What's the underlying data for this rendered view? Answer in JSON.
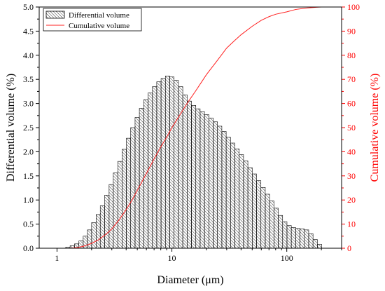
{
  "chart_data": {
    "type": "bar",
    "xlabel": "Diameter (μm)",
    "ylabel": "Differential volume (%)",
    "y2label": "Cumulative volume (%)",
    "xscale": "log",
    "xlim": [
      0.7,
      300
    ],
    "ylim": [
      0,
      5.0
    ],
    "y2lim": [
      0,
      100
    ],
    "x_ticks": [
      "1",
      "10",
      "100"
    ],
    "y_ticks": [
      "0.0",
      "0.5",
      "1.0",
      "1.5",
      "2.0",
      "2.5",
      "3.0",
      "3.5",
      "4.0",
      "4.5",
      "5.0"
    ],
    "y2_ticks": [
      "0",
      "10",
      "20",
      "30",
      "40",
      "50",
      "60",
      "70",
      "80",
      "90",
      "100"
    ],
    "legend_position": "top-left",
    "grid": false,
    "colors": {
      "bars": "#000000",
      "cumulative": "#ff2020",
      "right_axis": "#ff0000"
    },
    "series": [
      {
        "name": "Differential volume",
        "type": "bar",
        "axis": "left",
        "bin_edges": [
          1.19,
          1.3,
          1.42,
          1.55,
          1.69,
          1.84,
          2.0,
          2.19,
          2.38,
          2.6,
          2.84,
          3.09,
          3.38,
          3.68,
          4.02,
          4.38,
          4.78,
          5.21,
          5.69,
          6.2,
          6.77,
          7.38,
          8.05,
          8.78,
          9.58,
          10.45,
          11.4,
          12.44,
          13.57,
          14.8,
          16.15,
          17.61,
          19.21,
          20.96,
          22.87,
          24.94,
          27.21,
          29.69,
          32.38,
          35.33,
          38.54,
          42.04,
          45.86,
          50.03,
          54.58,
          59.54,
          64.96,
          70.87,
          77.31,
          84.34,
          92.01,
          100.38,
          109.51,
          119.47,
          130.33,
          142.18,
          155.11,
          169.21,
          184.6,
          201.38
        ],
        "values": [
          0.02,
          0.05,
          0.09,
          0.15,
          0.25,
          0.38,
          0.53,
          0.7,
          0.88,
          1.1,
          1.32,
          1.56,
          1.8,
          2.05,
          2.28,
          2.5,
          2.71,
          2.9,
          3.08,
          3.22,
          3.35,
          3.45,
          3.52,
          3.57,
          3.55,
          3.48,
          3.35,
          3.18,
          3.05,
          2.96,
          2.89,
          2.83,
          2.77,
          2.7,
          2.62,
          2.53,
          2.42,
          2.3,
          2.18,
          2.06,
          1.94,
          1.81,
          1.67,
          1.54,
          1.4,
          1.26,
          1.12,
          0.98,
          0.83,
          0.68,
          0.55,
          0.47,
          0.43,
          0.41,
          0.4,
          0.38,
          0.3,
          0.18,
          0.08
        ]
      },
      {
        "name": "Cumulative volume",
        "type": "line",
        "axis": "right",
        "x": [
          1.3,
          1.5,
          1.7,
          2.0,
          2.3,
          2.7,
          3.0,
          3.5,
          4.0,
          4.5,
          5.0,
          6.0,
          7.0,
          8.0,
          9.0,
          10,
          12,
          14,
          16,
          20,
          25,
          30,
          35,
          40,
          50,
          60,
          70,
          80,
          100,
          120,
          150,
          180,
          200,
          250
        ],
        "y": [
          0,
          0.3,
          0.8,
          2,
          3.5,
          6,
          8,
          12,
          16,
          20,
          24,
          31,
          37,
          42,
          46,
          50,
          56,
          61,
          65,
          72,
          78,
          83,
          86,
          88.5,
          92,
          94.5,
          96,
          97,
          98,
          99,
          99.6,
          99.9,
          100,
          100
        ]
      }
    ]
  }
}
